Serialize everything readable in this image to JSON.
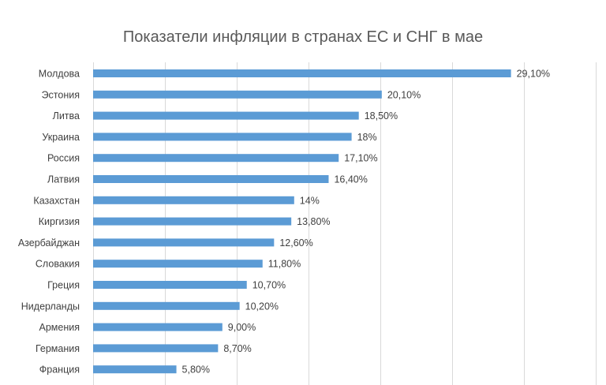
{
  "chart_data": {
    "type": "bar",
    "orientation": "horizontal",
    "title": "Показатели инфляции в странах ЕС и СНГ в мае",
    "xlabel": "",
    "ylabel": "",
    "categories": [
      "Молдова",
      "Эстония",
      "Литва",
      "Украина",
      "Россия",
      "Латвия",
      "Казахстан",
      "Киргизия",
      "Азербайджан",
      "Словакия",
      "Греция",
      "Нидерланды",
      "Армения",
      "Германия",
      "Франция"
    ],
    "values": [
      29.1,
      20.1,
      18.5,
      18,
      17.1,
      16.4,
      14,
      13.8,
      12.6,
      11.8,
      10.7,
      10.2,
      9.0,
      8.7,
      5.8
    ],
    "data_labels": [
      "29,10%",
      "20,10%",
      "18,50%",
      "18%",
      "17,10%",
      "16,40%",
      "14%",
      "13,80%",
      "12,60%",
      "11,80%",
      "10,70%",
      "10,20%",
      "9,00%",
      "8,70%",
      "5,80%"
    ],
    "xlim": [
      0,
      35
    ],
    "grid": "vertical",
    "legend": "none",
    "bar_color": "#5B9BD5",
    "gridline_color": "#D9D9D9"
  }
}
